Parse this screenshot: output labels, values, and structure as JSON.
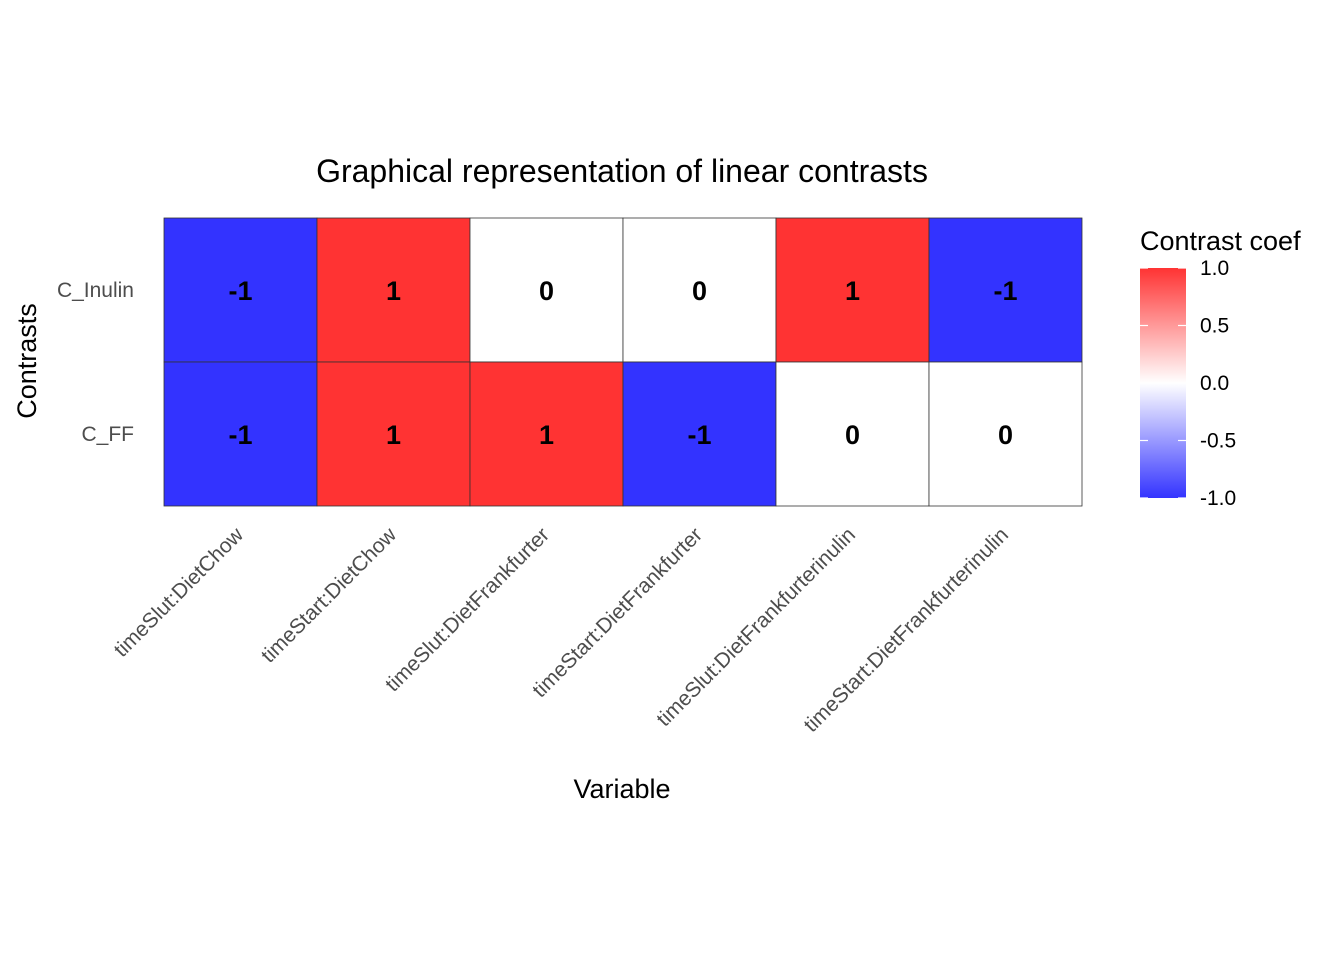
{
  "chart_data": {
    "type": "heatmap",
    "title": "Graphical representation of linear contrasts",
    "xlabel": "Variable",
    "ylabel": "Contrasts",
    "x": [
      "timeSlut:DietChow",
      "timeStart:DietChow",
      "timeSlut:DietFrankfurter",
      "timeStart:DietFrankfurter",
      "timeSlut:DietFrankfurterinulin",
      "timeStart:DietFrankfurterinulin"
    ],
    "y": [
      "C_Inulin",
      "C_FF"
    ],
    "values": [
      [
        -1,
        1,
        0,
        0,
        1,
        -1
      ],
      [
        -1,
        1,
        1,
        -1,
        0,
        0
      ]
    ],
    "legend": {
      "title": "Contrast coef",
      "position": "right",
      "range": [
        -1.0,
        1.0
      ],
      "ticks": [
        "1.0",
        "0.5",
        "0.0",
        "-0.5",
        "-1.0"
      ],
      "tick_values": [
        1.0,
        0.5,
        0.0,
        -0.5,
        -1.0
      ]
    },
    "colors": {
      "low": "#3333ff",
      "mid": "#ffffff",
      "high": "#ff3333"
    },
    "grid": false
  }
}
